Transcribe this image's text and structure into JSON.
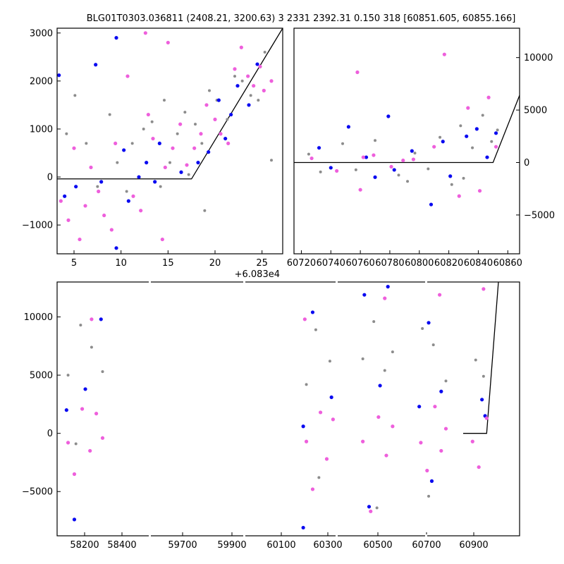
{
  "title": "BLG01T0303.036811 (2408.21, 3200.63)    3 2331 2392.31 0.150 318 [60851.605, 60855.166]",
  "colors": {
    "gray": "#8c8c8c",
    "blue": "#0a0af0",
    "pink": "#ee5fdc",
    "model": "#000000"
  },
  "chart_data": [
    {
      "type": "scatter",
      "panel": "top-left",
      "x_offset_label": "+6.083e4",
      "xlim": [
        3.2,
        27.2
      ],
      "ylim": [
        -1600,
        3100
      ],
      "xticks": [
        "5",
        "10",
        "15",
        "20",
        "25"
      ],
      "yticks": [
        "3000",
        "2000",
        "1000",
        "0",
        "−1000"
      ],
      "model_line": {
        "x": [
          3.2,
          17.5,
          27.2
        ],
        "y": [
          -40,
          -40,
          3100
        ]
      },
      "series": [
        {
          "color": "gray",
          "points": [
            [
              4.2,
              900
            ],
            [
              5.1,
              1700
            ],
            [
              6.3,
              700
            ],
            [
              7.5,
              -200
            ],
            [
              8.8,
              1300
            ],
            [
              9.6,
              300
            ],
            [
              11.2,
              700
            ],
            [
              12.4,
              1000
            ],
            [
              13.3,
              1150
            ],
            [
              14.6,
              1600
            ],
            [
              15.2,
              300
            ],
            [
              16.0,
              900
            ],
            [
              16.8,
              1350
            ],
            [
              17.9,
              1100
            ],
            [
              18.6,
              700
            ],
            [
              19.4,
              1800
            ],
            [
              20.2,
              1600
            ],
            [
              21.3,
              1200
            ],
            [
              22.1,
              2100
            ],
            [
              22.9,
              2000
            ],
            [
              23.8,
              1700
            ],
            [
              24.6,
              1600
            ],
            [
              25.3,
              2600
            ],
            [
              26.0,
              350
            ],
            [
              18.9,
              -700
            ],
            [
              17.2,
              50
            ],
            [
              14.2,
              -200
            ],
            [
              10.6,
              -300
            ]
          ]
        },
        {
          "color": "blue",
          "points": [
            [
              3.4,
              2120
            ],
            [
              4.0,
              -400
            ],
            [
              7.3,
              2340
            ],
            [
              7.9,
              -100
            ],
            [
              9.5,
              2900
            ],
            [
              10.3,
              560
            ],
            [
              10.8,
              -500
            ],
            [
              11.9,
              0
            ],
            [
              12.7,
              300
            ],
            [
              13.6,
              -100
            ],
            [
              14.1,
              700
            ],
            [
              16.4,
              100
            ],
            [
              18.2,
              300
            ],
            [
              19.3,
              520
            ],
            [
              20.4,
              1600
            ],
            [
              21.1,
              800
            ],
            [
              21.7,
              1300
            ],
            [
              22.4,
              1900
            ],
            [
              23.6,
              1500
            ],
            [
              24.5,
              2350
            ],
            [
              9.5,
              -1480
            ],
            [
              5.2,
              -200
            ]
          ]
        },
        {
          "color": "pink",
          "points": [
            [
              3.6,
              -500
            ],
            [
              4.4,
              -900
            ],
            [
              5.0,
              600
            ],
            [
              5.6,
              -1300
            ],
            [
              6.2,
              -600
            ],
            [
              6.8,
              200
            ],
            [
              7.6,
              -300
            ],
            [
              8.2,
              -800
            ],
            [
              9.0,
              -1100
            ],
            [
              9.4,
              700
            ],
            [
              10.7,
              2100
            ],
            [
              11.3,
              -400
            ],
            [
              12.1,
              -700
            ],
            [
              12.9,
              1300
            ],
            [
              13.4,
              800
            ],
            [
              14.7,
              200
            ],
            [
              15.5,
              600
            ],
            [
              16.3,
              1100
            ],
            [
              17.0,
              250
            ],
            [
              17.8,
              600
            ],
            [
              18.5,
              900
            ],
            [
              19.1,
              1500
            ],
            [
              20.0,
              1200
            ],
            [
              20.6,
              900
            ],
            [
              21.4,
              700
            ],
            [
              22.1,
              2250
            ],
            [
              22.8,
              2700
            ],
            [
              23.5,
              2100
            ],
            [
              24.1,
              1900
            ],
            [
              24.8,
              2300
            ],
            [
              25.2,
              1800
            ],
            [
              26.0,
              2000
            ],
            [
              12.6,
              3000
            ],
            [
              15.0,
              2800
            ],
            [
              14.4,
              -1300
            ]
          ]
        }
      ]
    },
    {
      "type": "scatter",
      "panel": "top-right",
      "xlim": [
        60715,
        60868
      ],
      "ylim": [
        -8700,
        12800
      ],
      "xticks": [
        "60720",
        "60740",
        "60760",
        "60780",
        "60800",
        "60820",
        "60840",
        "60860"
      ],
      "yticks": [
        "10000",
        "5000",
        "0",
        "−5000"
      ],
      "model_line": {
        "x": [
          60715,
          60850,
          60868
        ],
        "y": [
          0,
          0,
          6400
        ]
      },
      "series": [
        {
          "color": "gray",
          "points": [
            [
              60725,
              800
            ],
            [
              60733,
              -900
            ],
            [
              60748,
              1800
            ],
            [
              60757,
              -700
            ],
            [
              60770,
              2100
            ],
            [
              60786,
              -1200
            ],
            [
              60797,
              900
            ],
            [
              60806,
              -600
            ],
            [
              60814,
              2400
            ],
            [
              60822,
              -2100
            ],
            [
              60828,
              3500
            ],
            [
              60836,
              1400
            ],
            [
              60843,
              4500
            ],
            [
              60849,
              2000
            ],
            [
              60853,
              3100
            ],
            [
              60830,
              -1500
            ],
            [
              60792,
              -1800
            ]
          ]
        },
        {
          "color": "blue",
          "points": [
            [
              60732,
              1400
            ],
            [
              60740,
              -500
            ],
            [
              60752,
              3400
            ],
            [
              60764,
              500
            ],
            [
              60779,
              4400
            ],
            [
              60783,
              -700
            ],
            [
              60795,
              1100
            ],
            [
              60808,
              -4000
            ],
            [
              60816,
              2000
            ],
            [
              60821,
              -1300
            ],
            [
              60832,
              2500
            ],
            [
              60839,
              3200
            ],
            [
              60846,
              500
            ],
            [
              60852,
              2800
            ],
            [
              60770,
              -1400
            ]
          ]
        },
        {
          "color": "pink",
          "points": [
            [
              60727,
              400
            ],
            [
              60744,
              -800
            ],
            [
              60758,
              8600
            ],
            [
              60769,
              700
            ],
            [
              60781,
              -400
            ],
            [
              60796,
              300
            ],
            [
              60810,
              1500
            ],
            [
              60817,
              10300
            ],
            [
              60827,
              -3200
            ],
            [
              60833,
              5200
            ],
            [
              60841,
              -2700
            ],
            [
              60847,
              6200
            ],
            [
              60852,
              1500
            ],
            [
              60760,
              -2600
            ],
            [
              60789,
              200
            ],
            [
              60762,
              500
            ]
          ]
        }
      ]
    },
    {
      "type": "scatter",
      "panel": "bottom",
      "xlim": [
        58110,
        61060
      ],
      "ylim": [
        -8800,
        13000
      ],
      "xticks": [
        "58200",
        "58400",
        "59700",
        "59900",
        "60100",
        "60300",
        "60500",
        "60700",
        "60900"
      ],
      "yticks": [
        "10000",
        "5000",
        "0",
        "−5000"
      ],
      "model_line": {
        "x": [
          60700,
          60850,
          60925
        ],
        "y": [
          0,
          0,
          13000
        ]
      },
      "series": [
        {
          "color": "gray",
          "points": [
            [
              58180,
              5000
            ],
            [
              58260,
              9300
            ],
            [
              58330,
              7400
            ],
            [
              58400,
              5300
            ],
            [
              59700,
              4200
            ],
            [
              59760,
              8900
            ],
            [
              59850,
              6200
            ],
            [
              60060,
              6400
            ],
            [
              60130,
              9600
            ],
            [
              60200,
              5400
            ],
            [
              60250,
              7000
            ],
            [
              60440,
              9000
            ],
            [
              60510,
              7600
            ],
            [
              60590,
              4500
            ],
            [
              60780,
              6300
            ],
            [
              60830,
              4900
            ],
            [
              58230,
              -900
            ],
            [
              59780,
              -3800
            ],
            [
              60150,
              -6400
            ],
            [
              60480,
              -5400
            ]
          ]
        },
        {
          "color": "blue",
          "points": [
            [
              58170,
              2000
            ],
            [
              58290,
              3800
            ],
            [
              58390,
              9800
            ],
            [
              59680,
              600
            ],
            [
              59740,
              10400
            ],
            [
              59860,
              3100
            ],
            [
              60070,
              11900
            ],
            [
              60170,
              4100
            ],
            [
              60220,
              12600
            ],
            [
              60420,
              2300
            ],
            [
              60480,
              9500
            ],
            [
              60560,
              3600
            ],
            [
              60820,
              2900
            ],
            [
              60840,
              1500
            ],
            [
              58220,
              -7400
            ],
            [
              59680,
              -8100
            ],
            [
              60100,
              -6300
            ],
            [
              60500,
              -4100
            ]
          ]
        },
        {
          "color": "pink",
          "points": [
            [
              58180,
              -800
            ],
            [
              58220,
              -3500
            ],
            [
              58270,
              2100
            ],
            [
              58320,
              -1500
            ],
            [
              58360,
              1700
            ],
            [
              58400,
              -400
            ],
            [
              59700,
              -700
            ],
            [
              59740,
              -4800
            ],
            [
              59790,
              1800
            ],
            [
              59830,
              -2200
            ],
            [
              59870,
              1200
            ],
            [
              60060,
              -700
            ],
            [
              60110,
              -6700
            ],
            [
              60160,
              1400
            ],
            [
              60210,
              -1900
            ],
            [
              60250,
              600
            ],
            [
              60430,
              -800
            ],
            [
              60470,
              -3200
            ],
            [
              60520,
              2300
            ],
            [
              60560,
              -1500
            ],
            [
              60590,
              400
            ],
            [
              60760,
              -700
            ],
            [
              60800,
              -2900
            ],
            [
              60850,
              1300
            ],
            [
              58330,
              9800
            ],
            [
              59690,
              9800
            ],
            [
              60200,
              11600
            ],
            [
              60550,
              11900
            ],
            [
              60830,
              12400
            ]
          ]
        }
      ]
    }
  ]
}
